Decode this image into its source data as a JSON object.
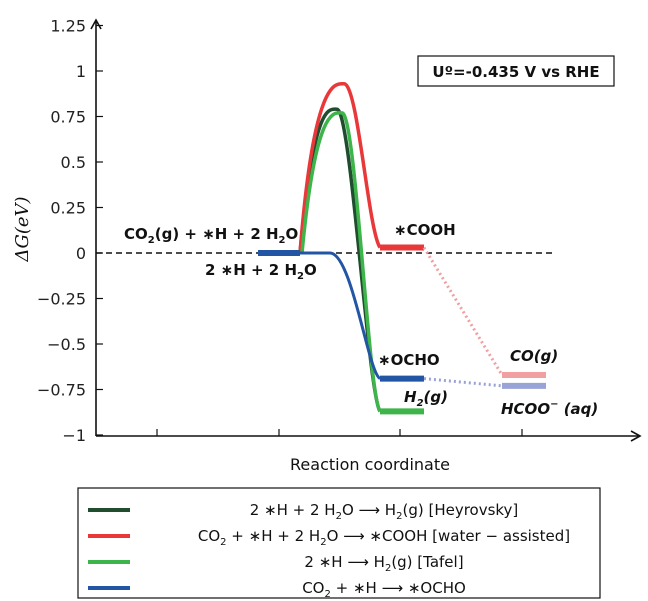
{
  "chart_data": {
    "type": "line",
    "xlabel": "Reaction coordinate",
    "ylabel": "ΔG(eV)",
    "ylim": [
      -1,
      1.25
    ],
    "yticks": [
      "1.25",
      "1",
      "0.75",
      "0.5",
      "0.25",
      "0",
      "−0.25",
      "−0.5",
      "−0.75",
      "−1"
    ],
    "ytick_values": [
      1.25,
      1,
      0.75,
      0.5,
      0.25,
      0,
      -0.25,
      -0.5,
      -0.75,
      -1
    ],
    "grid": false,
    "legend_position": "bottom",
    "potential_box": "Uº=-0.435 V vs RHE",
    "colors": {
      "heyrovsky": "#1f4d2e",
      "water": "#e8383a",
      "tafel": "#3db54a",
      "ocho": "#2255a4",
      "co_level": "#f0a0a0",
      "hcoo_level": "#9aa3d6"
    },
    "series": [
      {
        "name": "2 ∗H + 2 H₂O ⟶ H₂(g) [Heyrovsky]",
        "legend_parts": [
          "2 ∗H + 2 H",
          "2",
          "O ",
          "⟶",
          " H",
          "2",
          "(g) [Heyrovsky]"
        ],
        "color_key": "heyrovsky",
        "initial": 0,
        "barrier": 0.79,
        "final": -0.87
      },
      {
        "name": "CO₂ + ∗H + 2 H₂O ⟶ ∗COOH [water − assisted]",
        "legend_parts": [
          "CO",
          "2",
          " + ∗H + 2 H",
          "2",
          "O ",
          "⟶",
          " ∗COOH [water − assisted]"
        ],
        "color_key": "water",
        "initial": 0,
        "barrier": 0.93,
        "final": 0.03
      },
      {
        "name": "2 ∗H ⟶ H₂(g) [Tafel]",
        "legend_parts": [
          "2 ∗H ",
          "⟶",
          " H",
          "2",
          "(g) [Tafel]"
        ],
        "color_key": "tafel",
        "initial": 0,
        "barrier": 0.77,
        "final": -0.87
      },
      {
        "name": "CO₂ + ∗H ⟶ ∗OCHO",
        "legend_parts": [
          "CO",
          "2",
          " + ∗H ",
          "⟶",
          " ∗OCHO"
        ],
        "color_key": "ocho",
        "initial": 0,
        "barrier": null,
        "final": -0.69
      }
    ],
    "product_levels": [
      {
        "label": "CO(g)",
        "value": -0.67,
        "color_key": "co_level"
      },
      {
        "label": "HCOO⁻(aq)",
        "value": -0.73,
        "color_key": "hcoo_level"
      }
    ],
    "annotations": {
      "initial_a": [
        "CO",
        "2",
        "(g) + ∗H + 2 H",
        "2",
        "O"
      ],
      "initial_b": [
        "2 ∗H + 2 H",
        "2",
        "O"
      ],
      "cooh": "∗COOH",
      "ocho": "∗OCHO",
      "h2": "H₂(g)",
      "h2_parts": [
        "H",
        "2",
        "(g)"
      ],
      "co": "CO(g)",
      "hcoo": "HCOO⁻(aq)",
      "hcoo_parts": [
        "HCOO",
        "−",
        " (aq)"
      ]
    }
  }
}
